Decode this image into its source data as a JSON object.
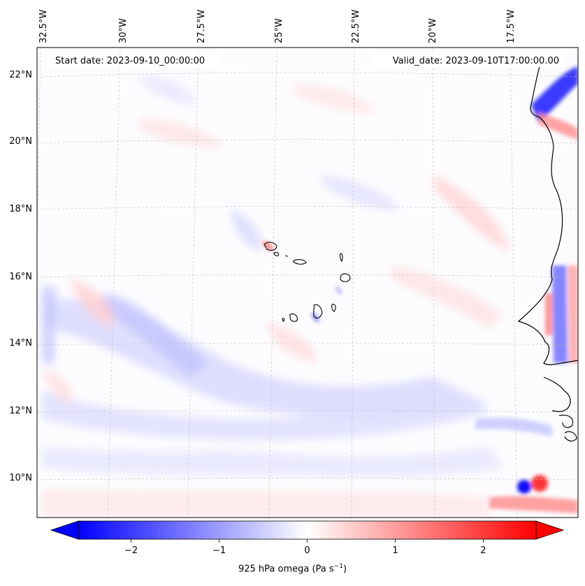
{
  "annotations": {
    "start_date": "Start date: 2023-09-10_00:00:00",
    "valid_date": "Valid_date: 2023-09-10T17:00:00.00"
  },
  "lon_ticks": [
    {
      "label": "32.5°W",
      "value": -32.5
    },
    {
      "label": "30°W",
      "value": -30
    },
    {
      "label": "27.5°W",
      "value": -27.5
    },
    {
      "label": "25°W",
      "value": -25
    },
    {
      "label": "22.5°W",
      "value": -22.5
    },
    {
      "label": "20°W",
      "value": -20
    },
    {
      "label": "17.5°W",
      "value": -17.5
    }
  ],
  "lat_ticks": [
    {
      "label": "22°N",
      "value": 22
    },
    {
      "label": "20°N",
      "value": 20
    },
    {
      "label": "18°N",
      "value": 18
    },
    {
      "label": "16°N",
      "value": 16
    },
    {
      "label": "14°N",
      "value": 14
    },
    {
      "label": "12°N",
      "value": 12
    },
    {
      "label": "10°N",
      "value": 10
    }
  ],
  "colorbar": {
    "label_main": "925 hPa omega (Pa s",
    "label_exp": "−1",
    "label_close": ")",
    "min": -2.6,
    "max": 2.6,
    "ticks": [
      {
        "label": "−2",
        "value": -2
      },
      {
        "label": "−1",
        "value": -1
      },
      {
        "label": "0",
        "value": 0
      },
      {
        "label": "1",
        "value": 1
      },
      {
        "label": "2",
        "value": 2
      }
    ],
    "colormap": "bwr",
    "low_color": "#0000ff",
    "mid_color": "#ffffff",
    "high_color": "#ff0000"
  },
  "map": {
    "extent_lon": [
      -32.6,
      -15.8
    ],
    "extent_lat": [
      8.9,
      22.8
    ],
    "gridlines": true,
    "features": [
      "Cabo Verde islands",
      "West African coastline"
    ]
  }
}
